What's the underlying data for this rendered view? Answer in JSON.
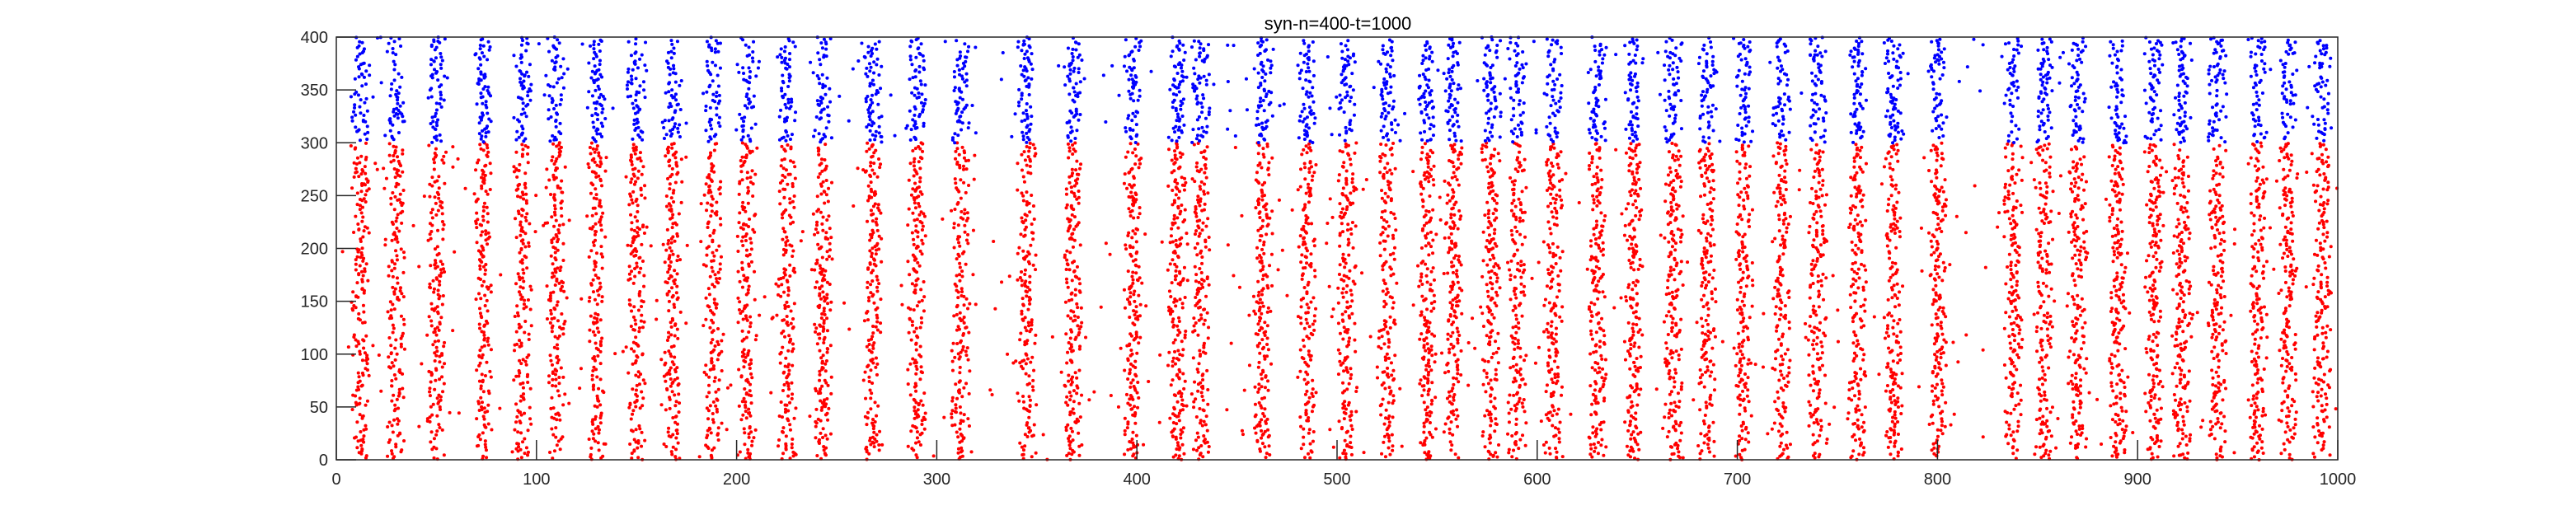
{
  "chart_data": {
    "type": "scatter",
    "title": "syn-n=400-t=1000",
    "xlabel": "",
    "ylabel": "",
    "xlim": [
      0,
      1000
    ],
    "ylim": [
      0,
      400
    ],
    "x_ticks": [
      "0",
      "100",
      "200",
      "300",
      "400",
      "500",
      "600",
      "700",
      "800",
      "900",
      "1000"
    ],
    "y_ticks": [
      "0",
      "50",
      "100",
      "150",
      "200",
      "250",
      "300",
      "350",
      "400"
    ],
    "grid": false,
    "legend": "none",
    "series": [
      {
        "color": "#ff0000",
        "neuron_range": [
          0,
          300
        ]
      },
      {
        "color": "#0000ff",
        "neuron_range": [
          300,
          400
        ]
      }
    ],
    "burst_times": [
      12,
      30,
      50,
      73,
      93,
      110,
      130,
      150,
      168,
      188,
      205,
      225,
      243,
      268,
      290,
      312,
      345,
      368,
      398,
      420,
      432,
      463,
      485,
      505,
      525,
      545,
      558,
      577,
      590,
      608,
      630,
      648,
      668,
      685,
      703,
      722,
      740,
      760,
      778,
      800,
      838,
      853,
      870,
      890,
      908,
      922,
      940,
      960,
      975,
      992
    ]
  }
}
